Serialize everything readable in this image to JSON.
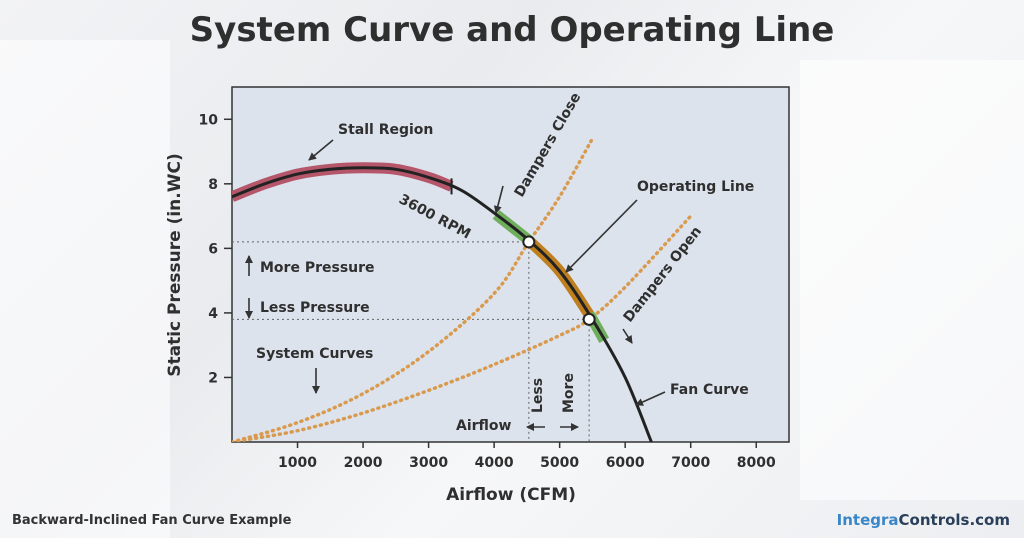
{
  "title": "System Curve and Operating Line",
  "caption": "Backward-Inclined Fan Curve Example",
  "brand": {
    "part1": "Integra",
    "part2": "Controls.com"
  },
  "chart_data": {
    "type": "line",
    "xlabel": "Airflow (CFM)",
    "ylabel": "Static Pressure (in.WC)",
    "xlim": [
      0,
      8500
    ],
    "ylim": [
      0,
      11
    ],
    "xticks": [
      1000,
      2000,
      3000,
      4000,
      5000,
      6000,
      7000,
      8000
    ],
    "yticks": [
      2,
      4,
      6,
      8,
      10
    ],
    "fan_curve": {
      "name": "Fan Curve",
      "speed_label": "3600 RPM",
      "color": "#222222",
      "points": [
        [
          0,
          7.6
        ],
        [
          500,
          8.0
        ],
        [
          1000,
          8.3
        ],
        [
          1500,
          8.45
        ],
        [
          2000,
          8.5
        ],
        [
          2500,
          8.45
        ],
        [
          3000,
          8.2
        ],
        [
          3500,
          7.8
        ],
        [
          4000,
          7.1
        ],
        [
          4500,
          6.3
        ],
        [
          5000,
          5.3
        ],
        [
          5500,
          3.8
        ],
        [
          6000,
          2.0
        ],
        [
          6400,
          0
        ]
      ]
    },
    "stall_region": {
      "label": "Stall Region",
      "color": "#b5566b",
      "x_range": [
        0,
        3350
      ]
    },
    "system_curves": {
      "label": "System Curves",
      "color": "#d99a4e",
      "curves": [
        {
          "label": "Dampers Close",
          "points": [
            [
              0,
              0
            ],
            [
              1000,
              0.6
            ],
            [
              2000,
              1.5
            ],
            [
              3000,
              2.8
            ],
            [
              4000,
              4.6
            ],
            [
              4530,
              6.2
            ],
            [
              5000,
              7.6
            ],
            [
              5500,
              9.4
            ]
          ]
        },
        {
          "label": "Dampers Open",
          "points": [
            [
              0,
              0
            ],
            [
              1000,
              0.35
            ],
            [
              2000,
              0.9
            ],
            [
              3000,
              1.6
            ],
            [
              4000,
              2.4
            ],
            [
              5000,
              3.3
            ],
            [
              5450,
              3.8
            ],
            [
              6000,
              4.8
            ],
            [
              7000,
              7.0
            ]
          ]
        }
      ]
    },
    "operating_line": {
      "label": "Operating Line",
      "color": "#c07f1f",
      "x_range": [
        4530,
        5450
      ]
    },
    "range_ends": {
      "color": "#6fae5c"
    },
    "operating_points": [
      {
        "x": 4530,
        "y": 6.2
      },
      {
        "x": 5450,
        "y": 3.8
      }
    ],
    "annotations": {
      "more_pressure": "More Pressure",
      "less_pressure": "Less Pressure",
      "airflow": "Airflow",
      "less": "Less",
      "more": "More"
    },
    "grid": false
  }
}
